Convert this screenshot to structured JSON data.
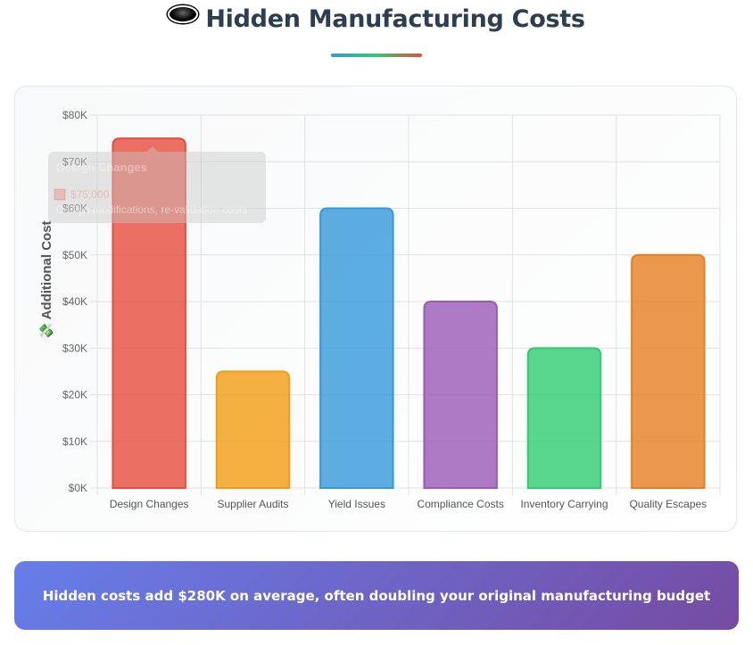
{
  "header": {
    "icon": "black-hole-icon",
    "title": "Hidden Manufacturing Costs"
  },
  "tooltip": {
    "title": "Design Changes",
    "value": "$75,000",
    "description": "Design modifications, re-validation costs",
    "swatch_color": "#e74c3c"
  },
  "banner": {
    "text": "Hidden costs add $280K on average, often doubling your original manufacturing budget",
    "gradient_start": "#667eea",
    "gradient_end": "#764ba2"
  },
  "chart_data": {
    "type": "bar",
    "title": "",
    "xlabel": "",
    "ylabel": "💸 Additional Cost",
    "ylim": [
      0,
      80000
    ],
    "ytick_step": 10000,
    "ytick_labels": [
      "$0K",
      "$10K",
      "$20K",
      "$30K",
      "$40K",
      "$50K",
      "$60K",
      "$70K",
      "$80K"
    ],
    "grid": true,
    "legend": "none",
    "categories": [
      "Design Changes",
      "Supplier Audits",
      "Yield Issues",
      "Compliance Costs",
      "Inventory Carrying",
      "Quality Escapes"
    ],
    "values": [
      75000,
      25000,
      60000,
      40000,
      30000,
      50000
    ],
    "colors": [
      "#e74c3c",
      "#f39c12",
      "#3498db",
      "#9b59b6",
      "#2ecc71",
      "#e67e22"
    ]
  }
}
